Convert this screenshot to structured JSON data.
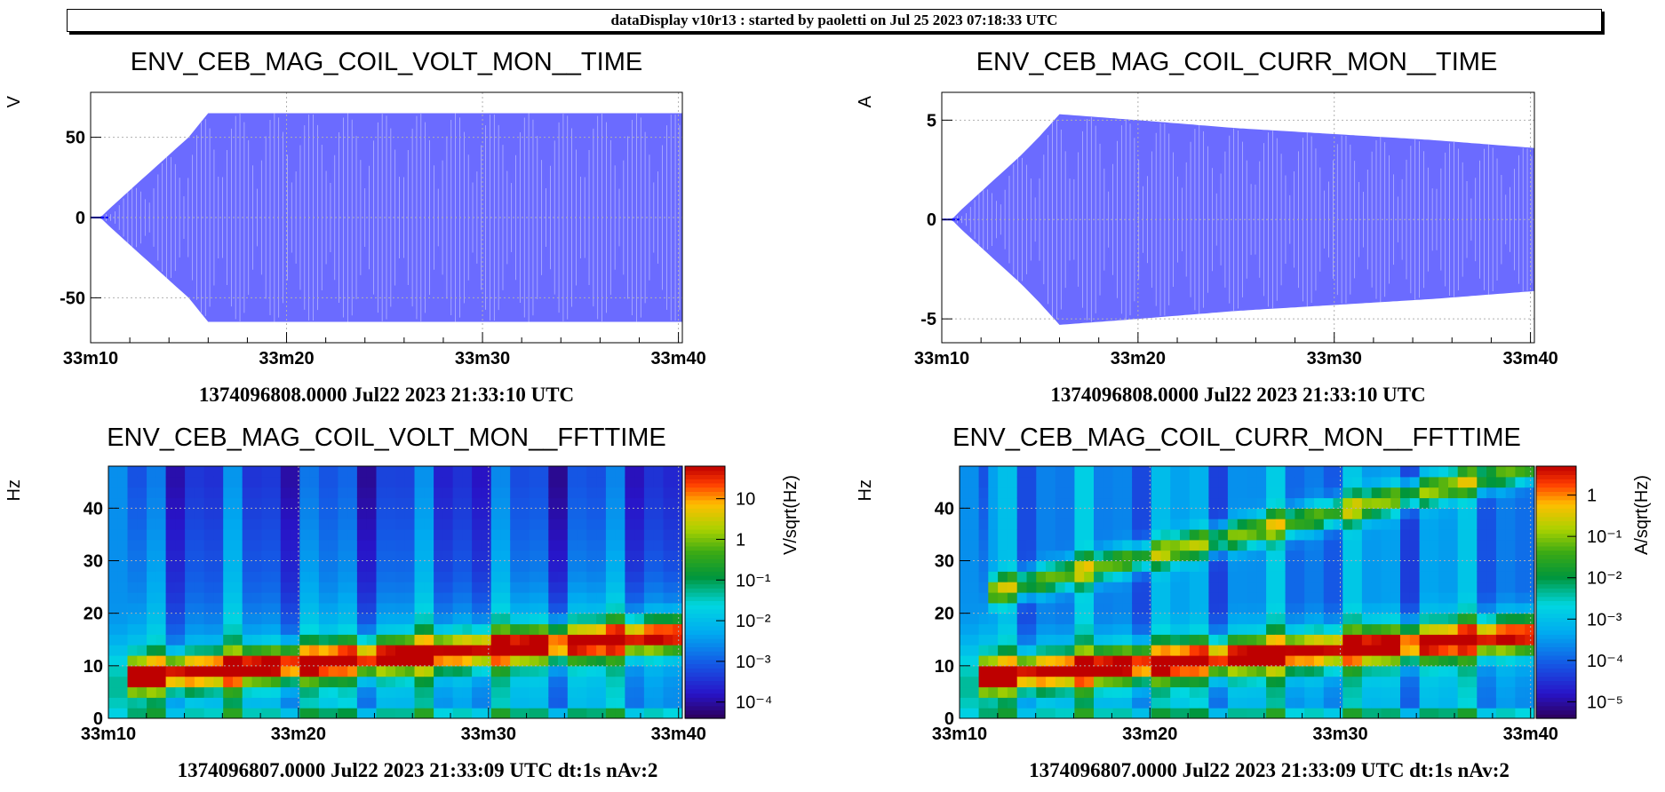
{
  "header": {
    "text": "dataDisplay v10r13 : started by paoletti on Jul 25 2023 07:18:33 UTC"
  },
  "colors": {
    "trace_fill": "#6b6bff",
    "trace_line": "#0000ff",
    "grid": "#b0b0b0"
  },
  "chart_data": [
    {
      "type": "line",
      "title": "ENV_CEB_MAG_COIL_VOLT_MON__TIME",
      "ylabel": "V",
      "xlabel": "1374096808.0000 Jul22 2023 21:33:10 UTC",
      "xlim": [
        10,
        40.2
      ],
      "ylim": [
        -78,
        78
      ],
      "x_ticks": [
        "33m10",
        "33m20",
        "33m30",
        "33m40"
      ],
      "y_ticks": [
        "-50",
        "0",
        "50"
      ],
      "x_tick_values": [
        10,
        20,
        30,
        40
      ],
      "y_tick_values": [
        -50,
        0,
        50
      ],
      "grid": true,
      "series": [
        {
          "x": [
            10,
            10.5,
            11,
            12,
            13,
            14,
            15,
            16,
            17,
            18,
            19,
            20,
            25,
            30,
            35,
            40.2
          ],
          "values": [
            0,
            0,
            6,
            17,
            28,
            39,
            50,
            65,
            65,
            65,
            65,
            65,
            65,
            65,
            65,
            65
          ]
        }
      ]
    },
    {
      "type": "line",
      "title": "ENV_CEB_MAG_COIL_CURR_MON__TIME",
      "ylabel": "A",
      "xlabel": "1374096808.0000 Jul22 2023 21:33:10 UTC",
      "xlim": [
        10,
        40.2
      ],
      "ylim": [
        -6.2,
        6.4
      ],
      "x_ticks": [
        "33m10",
        "33m20",
        "33m30",
        "33m40"
      ],
      "y_ticks": [
        "-5",
        "0",
        "5"
      ],
      "x_tick_values": [
        10,
        20,
        30,
        40
      ],
      "y_tick_values": [
        -5,
        0,
        5
      ],
      "grid": true,
      "series": [
        {
          "x": [
            10,
            10.5,
            11,
            12,
            13,
            14,
            15,
            16,
            20,
            25,
            30,
            35,
            40.2
          ],
          "values": [
            0,
            0,
            0.5,
            1.4,
            2.3,
            3.2,
            4.2,
            5.3,
            5.0,
            4.6,
            4.3,
            4.0,
            3.6
          ]
        }
      ]
    },
    {
      "type": "heatmap",
      "title": "ENV_CEB_MAG_COIL_VOLT_MON__FFTTIME",
      "ylabel": "Hz",
      "xlabel": "1374096807.0000 Jul22 2023 21:33:09 UTC dt:1s nAv:2",
      "colorbar_label": "V/sqrt(Hz)",
      "xlim": [
        10,
        40.2
      ],
      "ylim": [
        0,
        48
      ],
      "x_ticks": [
        "33m10",
        "33m20",
        "33m30",
        "33m40"
      ],
      "y_ticks": [
        "0",
        "10",
        "20",
        "30",
        "40"
      ],
      "x_tick_values": [
        10,
        20,
        30,
        40
      ],
      "y_tick_values": [
        0,
        10,
        20,
        30,
        40
      ],
      "colorbar_ticks": [
        "10",
        "1",
        "10⁻¹",
        "10⁻²",
        "10⁻³",
        "10⁻⁴"
      ],
      "colorbar_exp": [
        1,
        0,
        -1,
        -2,
        -3,
        -4
      ],
      "colorbar_range": [
        -4.4,
        1.8
      ],
      "grid": true,
      "peak_freq": {
        "t": [
          11,
          40.2
        ],
        "f": [
          8,
          16
        ]
      },
      "harmonic": null
    },
    {
      "type": "heatmap",
      "title": "ENV_CEB_MAG_COIL_CURR_MON__FFTTIME",
      "ylabel": "Hz",
      "xlabel": "1374096807.0000 Jul22 2023 21:33:09 UTC dt:1s nAv:2",
      "colorbar_label": "A/sqrt(Hz)",
      "xlim": [
        10,
        40.2
      ],
      "ylim": [
        0,
        48
      ],
      "x_ticks": [
        "33m10",
        "33m20",
        "33m30",
        "33m40"
      ],
      "y_ticks": [
        "0",
        "10",
        "20",
        "30",
        "40"
      ],
      "x_tick_values": [
        10,
        20,
        30,
        40
      ],
      "y_tick_values": [
        0,
        10,
        20,
        30,
        40
      ],
      "colorbar_ticks": [
        "1",
        "10⁻¹",
        "10⁻²",
        "10⁻³",
        "10⁻⁴",
        "10⁻⁵"
      ],
      "colorbar_exp": [
        0,
        -1,
        -2,
        -3,
        -4,
        -5
      ],
      "colorbar_range": [
        -5.4,
        0.7
      ],
      "grid": true,
      "peak_freq": {
        "t": [
          11,
          40.2
        ],
        "f": [
          8,
          16
        ]
      },
      "harmonic": {
        "t": [
          11.5,
          40.2
        ],
        "f": [
          24,
          48
        ]
      }
    }
  ]
}
